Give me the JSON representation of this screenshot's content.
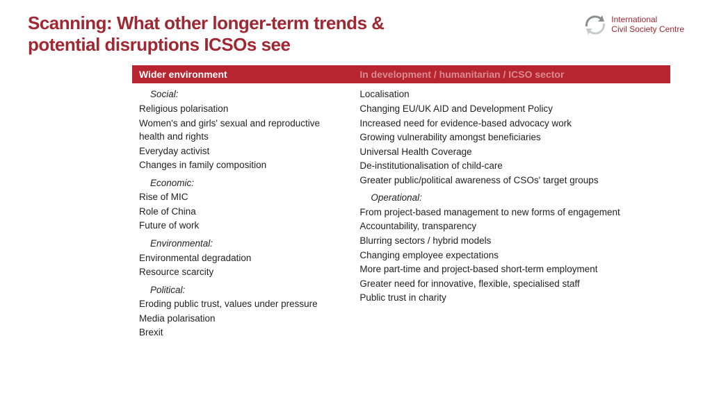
{
  "title": "Scanning: What other longer-term trends & potential disruptions ICSOs see",
  "logo": {
    "line1": "International",
    "line2": "Civil Society Centre",
    "iconColorDark": "#8a8c8e",
    "iconColorLight": "#c8cacb"
  },
  "colors": {
    "accent": "#a02833",
    "headerBg": "#b72530",
    "headerText1": "#ffffff",
    "headerText2": "#d98b92",
    "bodyText": "#222222",
    "background": "#ffffff"
  },
  "table": {
    "headers": {
      "col1": "Wider environment",
      "col2": "In development / humanitarian / ICSO sector"
    },
    "col1": {
      "groups": [
        {
          "label": "Social:",
          "items": [
            "Religious polarisation",
            "Women's and girls' sexual and reproductive health and rights",
            "Everyday activist",
            "Changes in family composition"
          ]
        },
        {
          "label": "Economic:",
          "items": [
            "Rise of MIC",
            "Role of China",
            "Future of work"
          ]
        },
        {
          "label": "Environmental:",
          "items": [
            "Environmental degradation",
            "Resource scarcity"
          ]
        },
        {
          "label": "Political:",
          "items": [
            "Eroding public trust, values under pressure",
            "Media polarisation",
            "Brexit"
          ]
        }
      ]
    },
    "col2": {
      "lead_items": [
        "Localisation",
        "Changing EU/UK AID and Development Policy",
        "Increased need for evidence-based advocacy work",
        "Growing vulnerability amongst beneficiaries",
        "Universal Health Coverage",
        "De-institutionalisation of child-care",
        "Greater public/political awareness of CSOs' target groups"
      ],
      "groups": [
        {
          "label": "Operational:",
          "items": [
            "From project-based management to new forms of engagement",
            "Accountability, transparency",
            "Blurring sectors / hybrid models",
            "Changing employee expectations",
            "More part-time and project-based short-term employment",
            "Greater need for innovative, flexible, specialised staff",
            "Public trust in charity"
          ]
        }
      ]
    }
  }
}
